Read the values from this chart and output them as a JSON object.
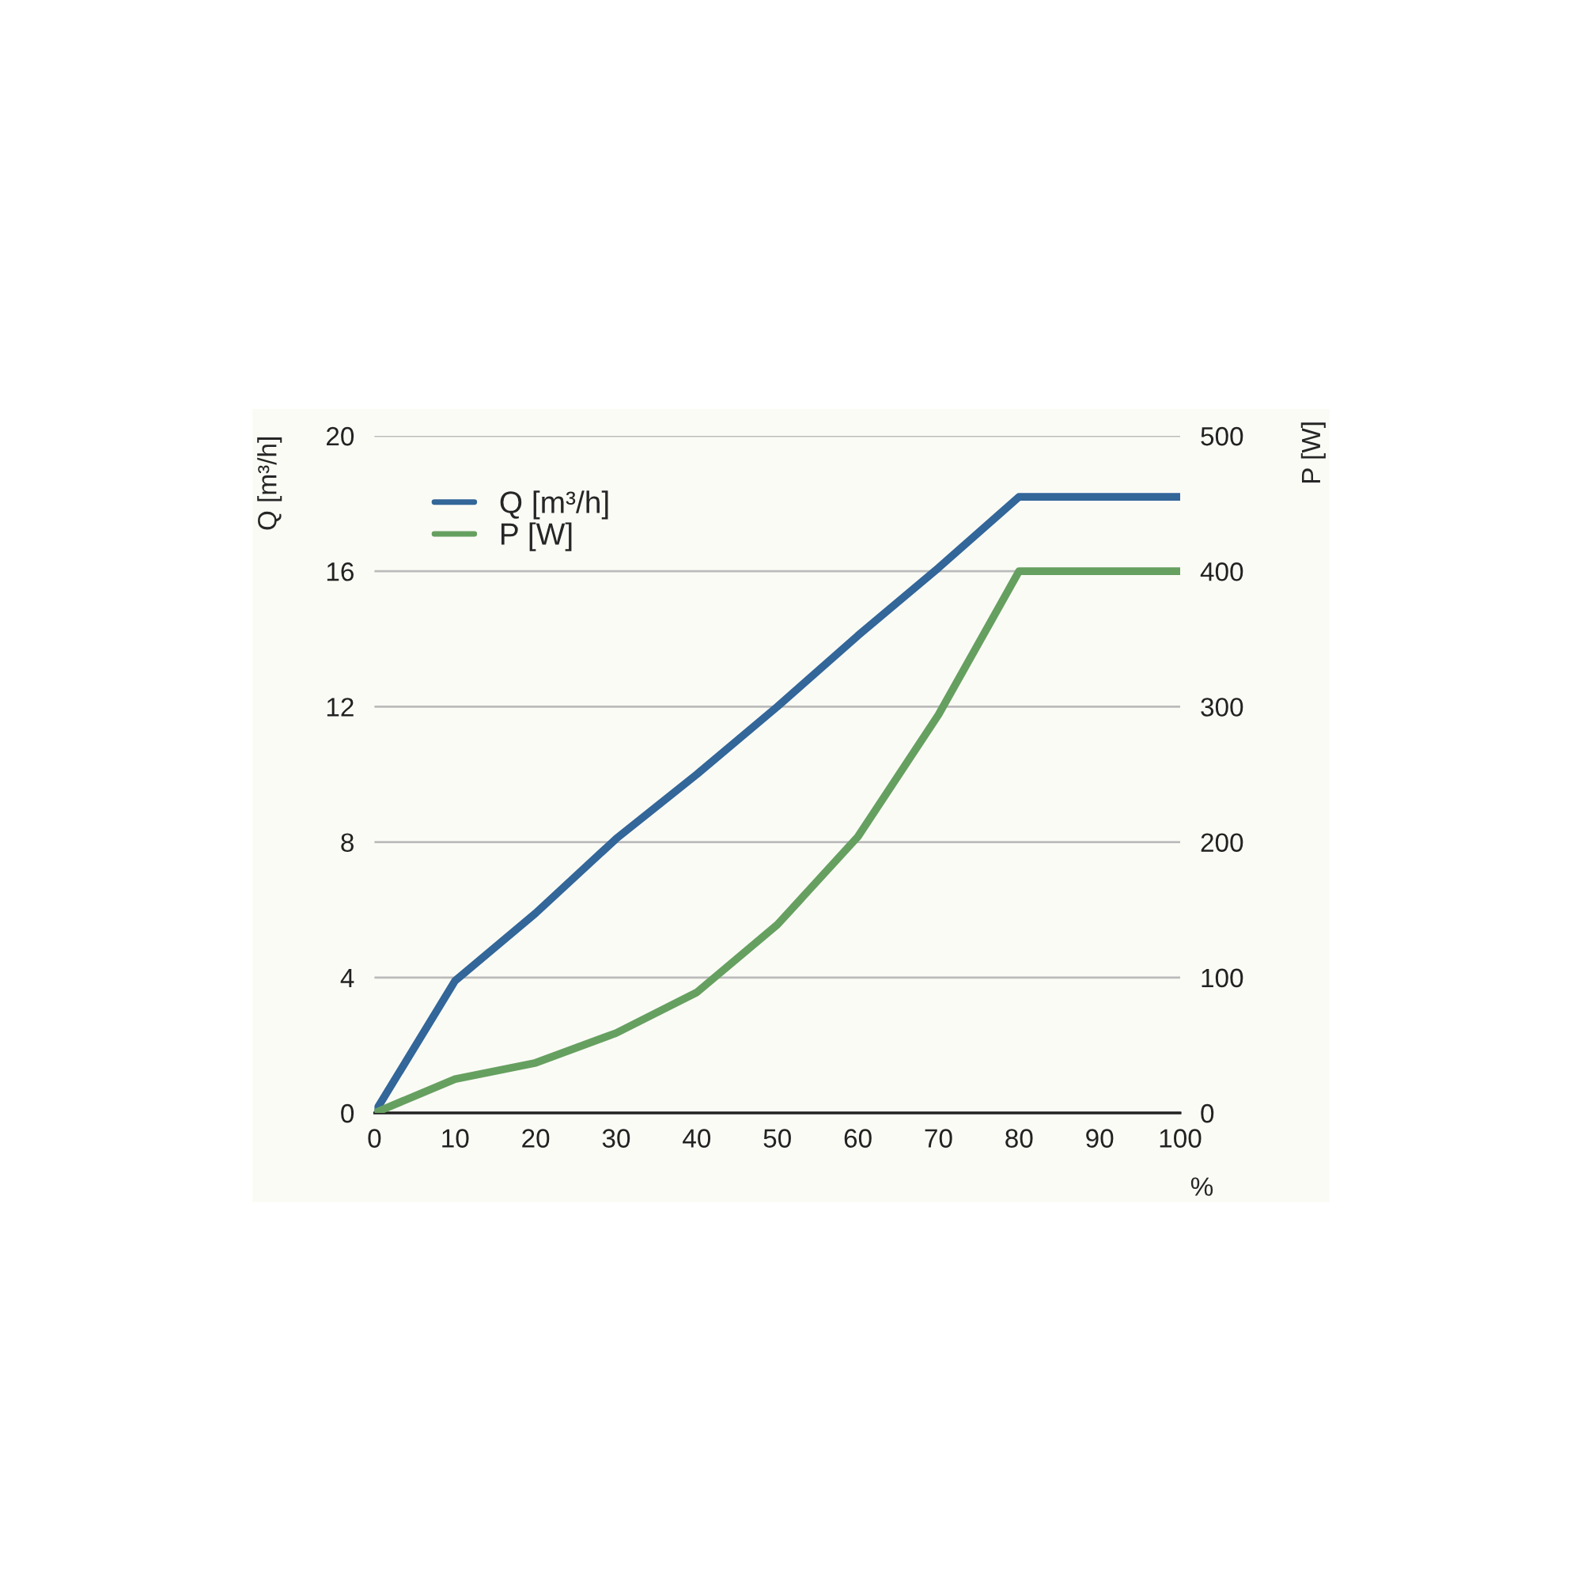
{
  "chart_data": {
    "type": "line",
    "xlabel": "%",
    "ylabel": "Q [m³/h]",
    "y2label": "P [W]",
    "x": [
      0,
      10,
      20,
      30,
      40,
      50,
      60,
      70,
      80,
      90,
      100
    ],
    "series": [
      {
        "name": "Q [m³/h]",
        "color": "#336699",
        "values": [
          0,
          3.9,
          5.9,
          8.1,
          10.0,
          12.0,
          14.1,
          16.1,
          18.2,
          18.2,
          18.2
        ]
      },
      {
        "name": "P [W]",
        "color": "#66a060",
        "axis": "y2",
        "values": [
          0,
          25,
          37,
          59,
          89,
          139,
          204,
          294,
          400,
          400,
          400
        ]
      }
    ],
    "xlim": [
      0,
      100
    ],
    "xticks": [
      0,
      10,
      20,
      30,
      40,
      50,
      60,
      70,
      80,
      90,
      100
    ],
    "ylim": [
      0,
      20
    ],
    "yticks": [
      0,
      4,
      8,
      12,
      16,
      20
    ],
    "y2lim": [
      0,
      500
    ],
    "y2ticks": [
      0,
      100,
      200,
      300,
      400,
      500
    ],
    "grid": "y",
    "legend": "top left",
    "marker": "none",
    "line_style": "solid"
  }
}
